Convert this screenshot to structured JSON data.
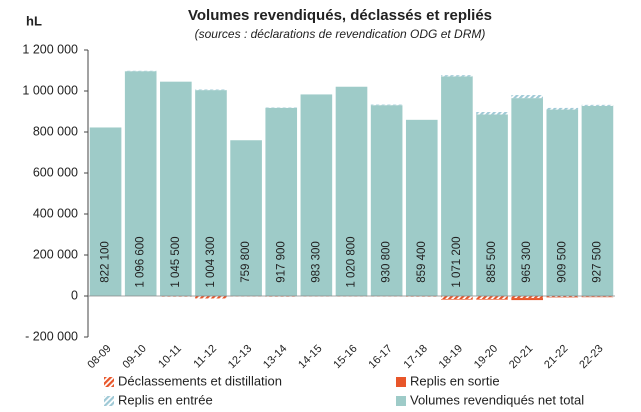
{
  "chart_data": {
    "type": "bar",
    "stacked": true,
    "title": "Volumes revendiqués, déclassés et repliés",
    "subtitle": "(sources : déclarations de revendication ODG et DRM)",
    "y_unit": "hL",
    "categories": [
      "08-09",
      "09-10",
      "10-11",
      "11-12",
      "12-13",
      "13-14",
      "14-15",
      "15-16",
      "16-17",
      "17-18",
      "18-19",
      "19-20",
      "20-21",
      "21-22",
      "22-23"
    ],
    "series": [
      {
        "name": "Déclassements et distillation",
        "color": "#e8562a",
        "hatched": true,
        "values": [
          0,
          0,
          -3000,
          -12000,
          -2000,
          -3000,
          -2000,
          -2000,
          -2000,
          -3000,
          -15000,
          -15000,
          -10000,
          -5000,
          -4000
        ]
      },
      {
        "name": "Replis en sortie",
        "color": "#e8562a",
        "hatched": false,
        "values": [
          0,
          0,
          0,
          0,
          0,
          0,
          0,
          0,
          0,
          0,
          -3000,
          -3000,
          -10000,
          -2000,
          -2000
        ]
      },
      {
        "name": "Replis en entrée",
        "color": "#9fc9d6",
        "hatched": true,
        "values": [
          0,
          2000,
          0,
          3000,
          0,
          2000,
          0,
          0,
          3000,
          0,
          6000,
          12000,
          15000,
          8000,
          5000
        ]
      },
      {
        "name": "Volumes revendiqués net total",
        "color": "#9ecbc8",
        "hatched": false,
        "values": [
          822100,
          1096600,
          1045500,
          1004300,
          759800,
          917900,
          983300,
          1020800,
          930800,
          859400,
          1071200,
          885500,
          965300,
          909500,
          927500
        ],
        "value_labels": [
          "822 100",
          "1 096 600",
          "1 045 500",
          "1 004 300",
          "759 800",
          "917 900",
          "983 300",
          "1 020 800",
          "930 800",
          "859 400",
          "1 071 200",
          "885 500",
          "965 300",
          "909 500",
          "927 500"
        ]
      }
    ],
    "ylim": [
      -200000,
      1200000
    ],
    "yticks": [
      {
        "value": -200000,
        "label": "- 200 000"
      },
      0,
      {
        "value": 200000,
        "label": "200 000"
      },
      {
        "value": 400000,
        "label": "400 000"
      },
      {
        "value": 600000,
        "label": "600 000"
      },
      {
        "value": 800000,
        "label": "800 000"
      },
      {
        "value": 1000000,
        "label": "1 000 000"
      },
      {
        "value": 1200000,
        "label": "1 200 000"
      }
    ],
    "grid": false,
    "legend": "bottom"
  }
}
